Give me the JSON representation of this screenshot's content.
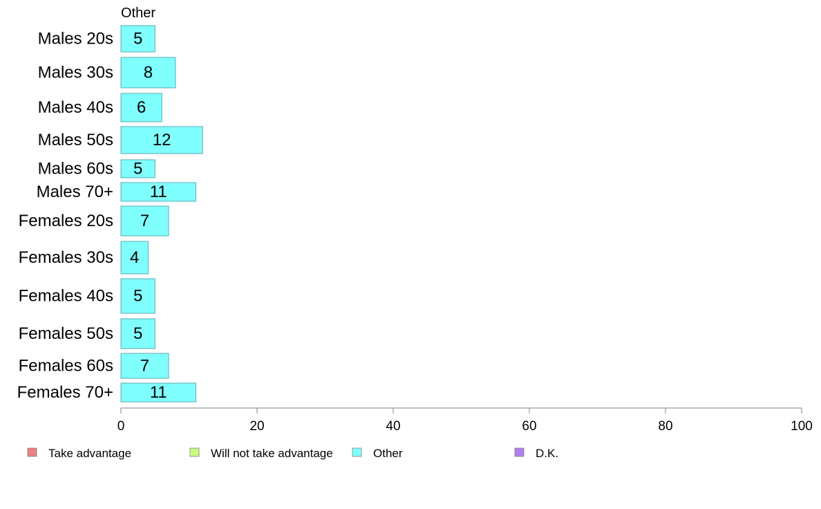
{
  "chart_data": {
    "type": "bar",
    "orientation": "horizontal",
    "title": "Other",
    "categories": [
      "Males 20s",
      "Males 30s",
      "Males 40s",
      "Males 50s",
      "Males 60s",
      "Males 70+",
      "Females 20s",
      "Females 30s",
      "Females 40s",
      "Females 50s",
      "Females 60s",
      "Females 70+"
    ],
    "series": [
      {
        "name": "Other",
        "color": "#80ffff",
        "values": [
          5,
          8,
          6,
          12,
          5,
          11,
          7,
          4,
          5,
          5,
          7,
          11
        ]
      }
    ],
    "xlim": [
      0,
      100
    ],
    "xticks": [
      0,
      20,
      40,
      60,
      80,
      100
    ],
    "grid": false,
    "legend": {
      "placement": "bottom",
      "items": [
        {
          "label": "Take advantage",
          "color": "#f08080"
        },
        {
          "label": "Will not take advantage",
          "color": "#c8ff80"
        },
        {
          "label": "Other",
          "color": "#80ffff"
        },
        {
          "label": "D.K.",
          "color": "#b080f0"
        }
      ]
    }
  }
}
